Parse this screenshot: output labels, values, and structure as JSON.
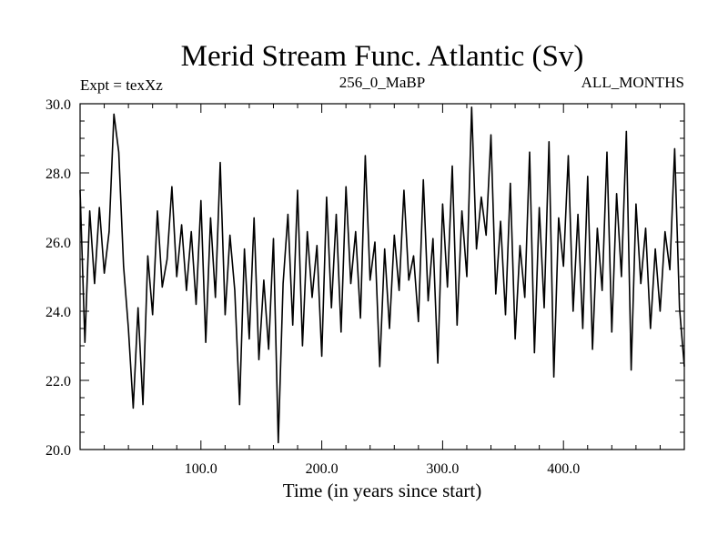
{
  "chart_data": {
    "type": "line",
    "title": "Merid Stream Func. Atlantic (Sv)",
    "subtitle_left": "Expt = texXz",
    "subtitle_center": "256_0_MaBP",
    "subtitle_right": "ALL_MONTHS",
    "xlabel": "Time (in years since start)",
    "ylabel": "",
    "xlim": [
      0,
      500
    ],
    "ylim": [
      20,
      30
    ],
    "x_ticks": [
      100,
      200,
      300,
      400
    ],
    "x_tick_labels": [
      "100.0",
      "200.0",
      "300.0",
      "400.0"
    ],
    "y_ticks": [
      20,
      22,
      24,
      26,
      28,
      30
    ],
    "y_tick_labels": [
      "20.0",
      "22.0",
      "24.0",
      "26.0",
      "28.0",
      "30.0"
    ],
    "grid": false,
    "series": [
      {
        "name": "Merid Stream Func. Atlantic",
        "x": [
          0,
          4,
          8,
          12,
          16,
          20,
          24,
          28,
          32,
          36,
          40,
          44,
          48,
          52,
          56,
          60,
          64,
          68,
          72,
          76,
          80,
          84,
          88,
          92,
          96,
          100,
          104,
          108,
          112,
          116,
          120,
          124,
          128,
          132,
          136,
          140,
          144,
          148,
          152,
          156,
          160,
          164,
          168,
          172,
          176,
          180,
          184,
          188,
          192,
          196,
          200,
          204,
          208,
          212,
          216,
          220,
          224,
          228,
          232,
          236,
          240,
          244,
          248,
          252,
          256,
          260,
          264,
          268,
          272,
          276,
          280,
          284,
          288,
          292,
          296,
          300,
          304,
          308,
          312,
          316,
          320,
          324,
          328,
          332,
          336,
          340,
          344,
          348,
          352,
          356,
          360,
          364,
          368,
          372,
          376,
          380,
          384,
          388,
          392,
          396,
          400,
          404,
          408,
          412,
          416,
          420,
          424,
          428,
          432,
          436,
          440,
          444,
          448,
          452,
          456,
          460,
          464,
          468,
          472,
          476,
          480,
          484,
          488,
          492,
          496,
          500
        ],
        "values": [
          27.5,
          23.1,
          26.9,
          24.8,
          27.0,
          25.1,
          26.3,
          29.7,
          28.6,
          25.3,
          23.5,
          21.2,
          24.1,
          21.3,
          25.6,
          23.9,
          26.9,
          24.7,
          25.5,
          27.6,
          25.0,
          26.5,
          24.6,
          26.3,
          24.2,
          27.2,
          23.1,
          26.7,
          24.4,
          28.3,
          23.9,
          26.2,
          24.6,
          21.3,
          25.8,
          23.2,
          26.7,
          22.6,
          24.9,
          22.9,
          26.1,
          20.2,
          24.8,
          26.8,
          23.6,
          27.5,
          23.0,
          26.3,
          24.4,
          25.9,
          22.7,
          27.3,
          24.1,
          26.8,
          23.4,
          27.6,
          24.8,
          26.3,
          23.8,
          28.5,
          24.9,
          26.0,
          22.4,
          25.8,
          23.5,
          26.2,
          24.6,
          27.5,
          24.9,
          25.6,
          23.7,
          27.8,
          24.3,
          26.1,
          22.5,
          27.1,
          24.7,
          28.2,
          23.6,
          26.9,
          25.0,
          29.9,
          25.8,
          27.3,
          26.2,
          29.1,
          24.5,
          26.6,
          23.9,
          27.7,
          23.2,
          25.9,
          24.4,
          28.6,
          22.8,
          27.0,
          24.1,
          28.9,
          22.1,
          26.7,
          25.3,
          28.5,
          24.0,
          26.8,
          23.5,
          27.9,
          22.9,
          26.4,
          24.6,
          28.6,
          23.4,
          27.4,
          25.0,
          29.2,
          22.3,
          27.1,
          24.8,
          26.4,
          23.5,
          25.8,
          24.0,
          26.3,
          25.2,
          28.7,
          24.1,
          22.4
        ]
      }
    ]
  }
}
